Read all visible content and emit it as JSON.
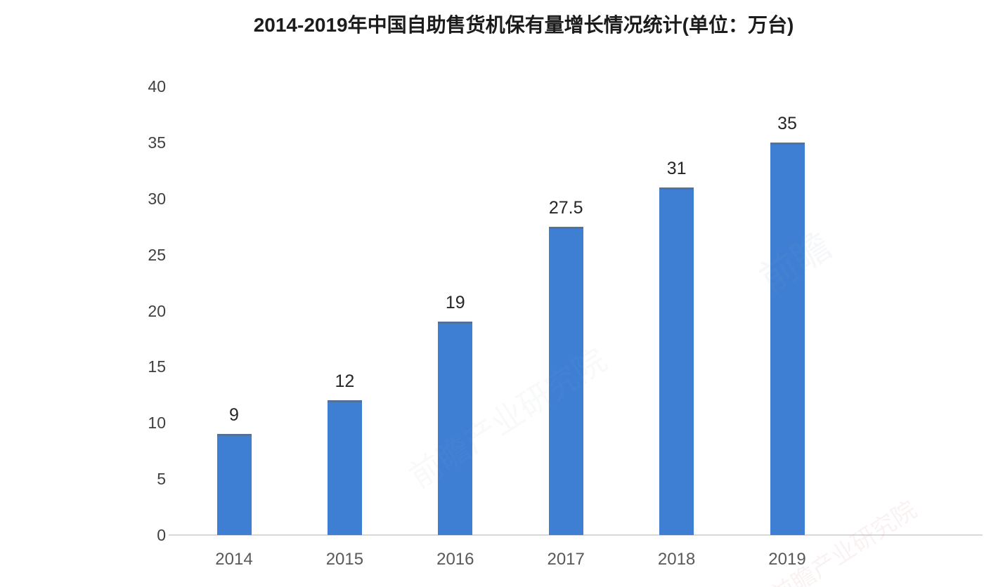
{
  "title": "2014-2019年中国自助售货机保有量增长情况统计(单位：万台)",
  "chart_data": {
    "type": "bar",
    "title": "2014-2019年中国自助售货机保有量增长情况统计(单位：万台)",
    "categories": [
      "2014",
      "2015",
      "2016",
      "2017",
      "2018",
      "2019"
    ],
    "values": [
      9,
      12,
      19,
      27.5,
      31,
      35
    ],
    "data_labels": [
      "9",
      "12",
      "19",
      "27.5",
      "31",
      "35"
    ],
    "xlabel": "",
    "ylabel": "",
    "ylim": [
      0,
      40
    ],
    "yticks": [
      0,
      5,
      10,
      15,
      20,
      25,
      30,
      35,
      40
    ],
    "grid": false,
    "legend_position": "none",
    "bar_color": "#3e7fd4",
    "bar_top_edge_color": "#54719a",
    "axis_line_color": "#d8d8d8",
    "tick_label_color": "#404040",
    "x_label_color": "#595959",
    "value_label_color": "#262626",
    "title_color": "#1c1c1c"
  },
  "watermarks": [
    {
      "text": "前瞻产业研究院",
      "color": "#9aa4b5",
      "opacity": 0.06
    },
    {
      "text": "前瞻",
      "color": "#8e9ab0",
      "opacity": 0.07
    },
    {
      "text": "前瞻产业研究院",
      "color": "#d98c8c",
      "opacity": 0.1
    }
  ]
}
